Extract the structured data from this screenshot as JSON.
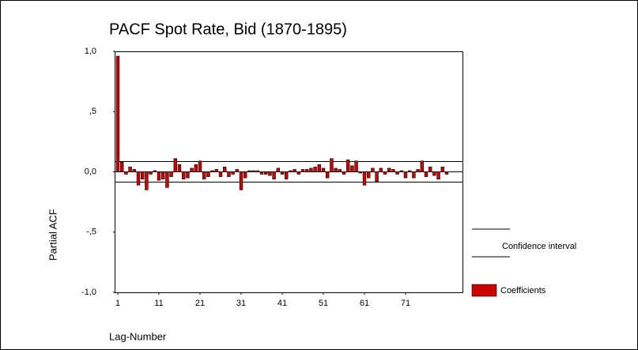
{
  "chart_data": {
    "type": "bar",
    "title": "PACF Spot Rate, Bid (1870-1895)",
    "x_label": "Lag-Number",
    "y_label": "Partial ACF",
    "categories": [
      "1",
      null,
      null,
      null,
      null,
      null,
      null,
      null,
      null,
      null,
      "11",
      null,
      null,
      null,
      null,
      null,
      null,
      null,
      null,
      null,
      "21",
      null,
      null,
      null,
      null,
      null,
      null,
      null,
      null,
      null,
      "31",
      null,
      null,
      null,
      null,
      null,
      null,
      null,
      null,
      null,
      "41",
      null,
      null,
      null,
      null,
      null,
      null,
      null,
      null,
      null,
      "51",
      null,
      null,
      null,
      null,
      null,
      null,
      null,
      null,
      null,
      "61",
      null,
      null,
      null,
      null,
      null,
      null,
      null,
      null,
      null,
      "71",
      null,
      null,
      null,
      null,
      null,
      null,
      null,
      null,
      null,
      null
    ],
    "series": [
      {
        "name": "Coefficients",
        "color": "#cc0000",
        "values": [
          0.96,
          0.08,
          -0.02,
          0.04,
          0.02,
          -0.11,
          -0.06,
          -0.15,
          -0.02,
          0.01,
          -0.07,
          -0.06,
          -0.13,
          -0.04,
          0.11,
          0.06,
          -0.06,
          -0.05,
          0.03,
          0.06,
          0.09,
          -0.06,
          -0.04,
          0.01,
          0.02,
          -0.04,
          0.04,
          -0.04,
          -0.02,
          0.02,
          -0.15,
          -0.05,
          0.01,
          0.01,
          0.01,
          -0.02,
          -0.02,
          -0.03,
          -0.06,
          0.03,
          -0.02,
          -0.06,
          0.01,
          0.02,
          -0.02,
          0.02,
          0.02,
          0.03,
          0.04,
          0.06,
          0.03,
          -0.05,
          0.11,
          0.03,
          0.02,
          -0.02,
          0.1,
          0.05,
          0.09,
          -0.01,
          -0.11,
          -0.05,
          0.03,
          -0.08,
          0.03,
          -0.02,
          0.03,
          0.02,
          -0.02,
          0.01,
          -0.05,
          0.01,
          -0.05,
          0.02,
          0.09,
          -0.04,
          0.04,
          -0.03,
          -0.06,
          0.04,
          -0.02
        ]
      }
    ],
    "confidence_limits": {
      "name": "Confidence interval",
      "values": [
        0.085,
        -0.085
      ]
    },
    "ylim": [
      -1.0,
      1.0
    ],
    "yticks": [
      {
        "value": -1.0,
        "label": "-1,0"
      },
      {
        "value": -0.5,
        "label": "-,5"
      },
      {
        "value": 0,
        "label": "0,0"
      },
      {
        "value": 0.5,
        "label": ",5"
      },
      {
        "value": 1.0,
        "label": "1,0"
      }
    ]
  }
}
